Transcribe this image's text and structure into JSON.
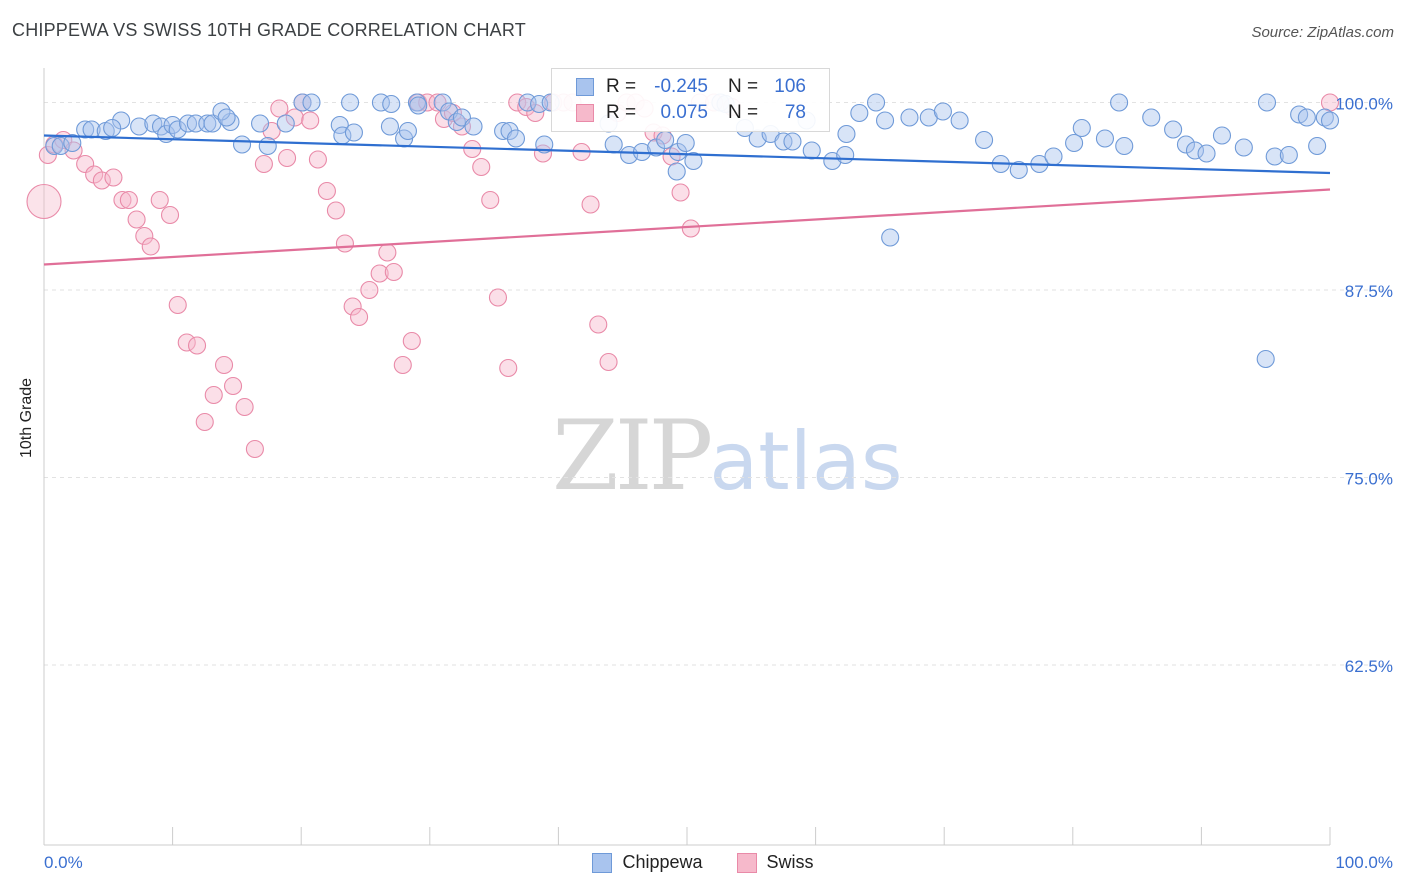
{
  "header": {
    "title": "CHIPPEWA VS SWISS 10TH GRADE CORRELATION CHART",
    "source": "Source: ZipAtlas.com"
  },
  "watermark": {
    "zip": "ZIP",
    "atlas": "atlas"
  },
  "legend": {
    "r_label": "R =",
    "n_label": "N =",
    "rows": [
      {
        "r": "-0.245",
        "n": "106"
      },
      {
        "r": "0.075",
        "n": "78"
      }
    ]
  },
  "colors": {
    "chippewa_fill": "#a9c4ee",
    "chippewa_stroke": "#6f9ad8",
    "chippewa_line": "#2f6fd0",
    "swiss_fill": "#f6b9cb",
    "swiss_stroke": "#e98aa8",
    "swiss_line": "#e06f98",
    "axis_label": "#3a6fd0"
  },
  "chart_data": {
    "type": "scatter",
    "title": "CHIPPEWA VS SWISS 10TH GRADE CORRELATION CHART",
    "xlabel": "",
    "ylabel": "10th Grade",
    "xlim": [
      0,
      100
    ],
    "ylim": [
      50.5,
      101.5
    ],
    "x_tick_labels": [
      "0.0%",
      "100.0%"
    ],
    "y_ticks": [
      100,
      87.5,
      75,
      62.5
    ],
    "y_tick_labels": [
      "100.0%",
      "87.5%",
      "75.0%",
      "62.5%"
    ],
    "grid": true,
    "legend_position": "top-center",
    "series": [
      {
        "name": "Chippewa",
        "r": -0.245,
        "n": 106,
        "trend": {
          "x": [
            0,
            100
          ],
          "y": [
            97.8,
            95.3
          ]
        },
        "points": [
          [
            0.8,
            97.1
          ],
          [
            1.3,
            97.1
          ],
          [
            2.2,
            97.3
          ],
          [
            3.2,
            98.2
          ],
          [
            3.7,
            98.2
          ],
          [
            4.8,
            98.1
          ],
          [
            6.0,
            98.8
          ],
          [
            5.3,
            98.3
          ],
          [
            7.4,
            98.4
          ],
          [
            8.5,
            98.6
          ],
          [
            9.1,
            98.4
          ],
          [
            9.5,
            97.9
          ],
          [
            10.0,
            98.5
          ],
          [
            10.4,
            98.2
          ],
          [
            11.2,
            98.6
          ],
          [
            11.8,
            98.6
          ],
          [
            12.7,
            98.6
          ],
          [
            13.1,
            98.6
          ],
          [
            14.5,
            98.7
          ],
          [
            13.8,
            99.4
          ],
          [
            14.2,
            99.0
          ],
          [
            15.4,
            97.2
          ],
          [
            16.8,
            98.6
          ],
          [
            17.4,
            97.1
          ],
          [
            18.8,
            98.6
          ],
          [
            20.1,
            100.0
          ],
          [
            20.8,
            100.0
          ],
          [
            23.0,
            98.5
          ],
          [
            23.2,
            97.8
          ],
          [
            24.1,
            98.0
          ],
          [
            23.8,
            100.0
          ],
          [
            26.2,
            100.0
          ],
          [
            27.0,
            99.9
          ],
          [
            26.9,
            98.4
          ],
          [
            28.0,
            97.6
          ],
          [
            28.3,
            98.1
          ],
          [
            29.0,
            100.0
          ],
          [
            29.1,
            99.8
          ],
          [
            31.0,
            100.0
          ],
          [
            31.5,
            99.4
          ],
          [
            32.1,
            98.7
          ],
          [
            32.5,
            99.0
          ],
          [
            33.4,
            98.4
          ],
          [
            35.7,
            98.1
          ],
          [
            36.2,
            98.1
          ],
          [
            36.7,
            97.6
          ],
          [
            37.6,
            100.0
          ],
          [
            38.5,
            99.9
          ],
          [
            38.9,
            97.2
          ],
          [
            43.9,
            98.6
          ],
          [
            44.3,
            97.2
          ],
          [
            45.5,
            96.5
          ],
          [
            46.5,
            96.7
          ],
          [
            47.6,
            97.0
          ],
          [
            49.3,
            96.7
          ],
          [
            48.3,
            97.5
          ],
          [
            49.9,
            97.3
          ],
          [
            49.2,
            95.4
          ],
          [
            50.5,
            96.1
          ],
          [
            52.6,
            100.0
          ],
          [
            53.0,
            99.9
          ],
          [
            54.5,
            98.3
          ],
          [
            55.5,
            97.6
          ],
          [
            56.5,
            97.9
          ],
          [
            59.3,
            98.8
          ],
          [
            57.5,
            97.4
          ],
          [
            58.2,
            97.4
          ],
          [
            59.7,
            96.8
          ],
          [
            61.3,
            96.1
          ],
          [
            62.4,
            97.9
          ],
          [
            63.4,
            99.3
          ],
          [
            64.7,
            100.0
          ],
          [
            65.4,
            98.8
          ],
          [
            67.3,
            99.0
          ],
          [
            68.8,
            99.0
          ],
          [
            69.9,
            99.4
          ],
          [
            71.2,
            98.8
          ],
          [
            73.1,
            97.5
          ],
          [
            74.4,
            95.9
          ],
          [
            75.8,
            95.5
          ],
          [
            77.4,
            95.9
          ],
          [
            78.5,
            96.4
          ],
          [
            80.1,
            97.3
          ],
          [
            80.7,
            98.3
          ],
          [
            82.5,
            97.6
          ],
          [
            83.6,
            100.0
          ],
          [
            84.0,
            97.1
          ],
          [
            86.1,
            99.0
          ],
          [
            87.8,
            98.2
          ],
          [
            88.8,
            97.2
          ],
          [
            89.5,
            96.8
          ],
          [
            90.4,
            96.6
          ],
          [
            91.6,
            97.8
          ],
          [
            93.3,
            97.0
          ],
          [
            95.1,
            100.0
          ],
          [
            95.7,
            96.4
          ],
          [
            96.8,
            96.5
          ],
          [
            97.6,
            99.2
          ],
          [
            98.2,
            99.0
          ],
          [
            99.0,
            97.1
          ],
          [
            99.6,
            99.0
          ],
          [
            100.0,
            98.8
          ],
          [
            95.0,
            82.9
          ],
          [
            65.8,
            91.0
          ],
          [
            62.3,
            96.5
          ],
          [
            39.4,
            100.0
          ]
        ]
      },
      {
        "name": "Swiss",
        "r": 0.075,
        "n": 78,
        "trend": {
          "x": [
            0,
            100
          ],
          "y": [
            89.2,
            94.2
          ]
        },
        "points": [
          [
            0.3,
            96.5
          ],
          [
            0.8,
            97.2
          ],
          [
            1.5,
            97.5
          ],
          [
            2.3,
            96.8
          ],
          [
            3.2,
            95.9
          ],
          [
            3.9,
            95.2
          ],
          [
            4.5,
            94.8
          ],
          [
            5.4,
            95.0
          ],
          [
            6.1,
            93.5
          ],
          [
            6.6,
            93.5
          ],
          [
            7.2,
            92.2
          ],
          [
            7.8,
            91.1
          ],
          [
            8.3,
            90.4
          ],
          [
            9.0,
            93.5
          ],
          [
            9.8,
            92.5
          ],
          [
            10.4,
            86.5
          ],
          [
            11.1,
            84.0
          ],
          [
            11.9,
            83.8
          ],
          [
            12.5,
            78.7
          ],
          [
            13.2,
            80.5
          ],
          [
            14.0,
            82.5
          ],
          [
            14.7,
            81.1
          ],
          [
            15.6,
            79.7
          ],
          [
            16.4,
            76.9
          ],
          [
            17.1,
            95.9
          ],
          [
            17.7,
            98.1
          ],
          [
            18.3,
            99.6
          ],
          [
            18.9,
            96.3
          ],
          [
            19.5,
            99.0
          ],
          [
            20.1,
            100.0
          ],
          [
            20.7,
            98.8
          ],
          [
            21.3,
            96.2
          ],
          [
            22.0,
            94.1
          ],
          [
            22.7,
            92.8
          ],
          [
            23.4,
            90.6
          ],
          [
            24.0,
            86.4
          ],
          [
            24.5,
            85.7
          ],
          [
            25.3,
            87.5
          ],
          [
            26.1,
            88.6
          ],
          [
            26.7,
            90.0
          ],
          [
            27.2,
            88.7
          ],
          [
            27.9,
            82.5
          ],
          [
            28.6,
            84.1
          ],
          [
            29.1,
            100.0
          ],
          [
            29.8,
            100.0
          ],
          [
            30.6,
            100.0
          ],
          [
            31.1,
            98.9
          ],
          [
            31.8,
            99.3
          ],
          [
            32.5,
            98.4
          ],
          [
            33.3,
            96.9
          ],
          [
            34.0,
            95.7
          ],
          [
            34.7,
            93.5
          ],
          [
            35.3,
            87.0
          ],
          [
            36.1,
            82.3
          ],
          [
            36.8,
            100.0
          ],
          [
            37.5,
            99.7
          ],
          [
            38.2,
            99.3
          ],
          [
            38.8,
            96.6
          ],
          [
            39.6,
            100.0
          ],
          [
            40.4,
            100.0
          ],
          [
            41.1,
            100.0
          ],
          [
            41.8,
            96.7
          ],
          [
            42.5,
            93.2
          ],
          [
            43.1,
            85.2
          ],
          [
            43.9,
            82.7
          ],
          [
            44.6,
            99.3
          ],
          [
            45.3,
            100.0
          ],
          [
            46.0,
            100.0
          ],
          [
            46.7,
            99.6
          ],
          [
            47.4,
            98.0
          ],
          [
            48.1,
            97.8
          ],
          [
            48.8,
            96.4
          ],
          [
            49.5,
            94.0
          ],
          [
            50.3,
            91.6
          ],
          [
            51.0,
            100.0
          ],
          [
            52.1,
            100.0
          ],
          [
            53.5,
            99.7
          ],
          [
            100.0,
            100.0
          ]
        ]
      }
    ]
  },
  "bottom_legend": [
    {
      "label": "Chippewa"
    },
    {
      "label": "Swiss"
    }
  ]
}
